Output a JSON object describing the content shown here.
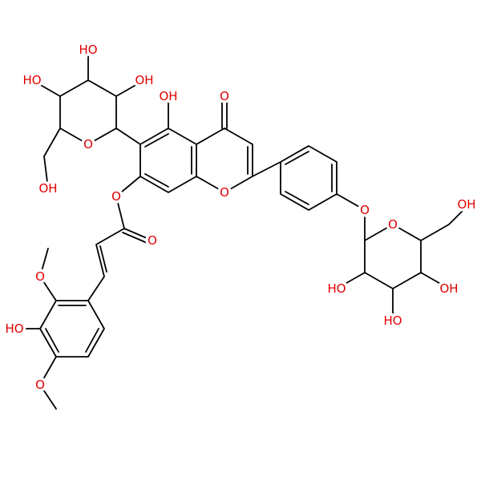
{
  "labels": [
    "O",
    "OH",
    "O",
    "O",
    "O",
    "O",
    "OH",
    "HO",
    "HO",
    "OH",
    "O",
    "HO",
    "O",
    "O",
    "O",
    "HO",
    "HO",
    "OH",
    "OH"
  ]
}
